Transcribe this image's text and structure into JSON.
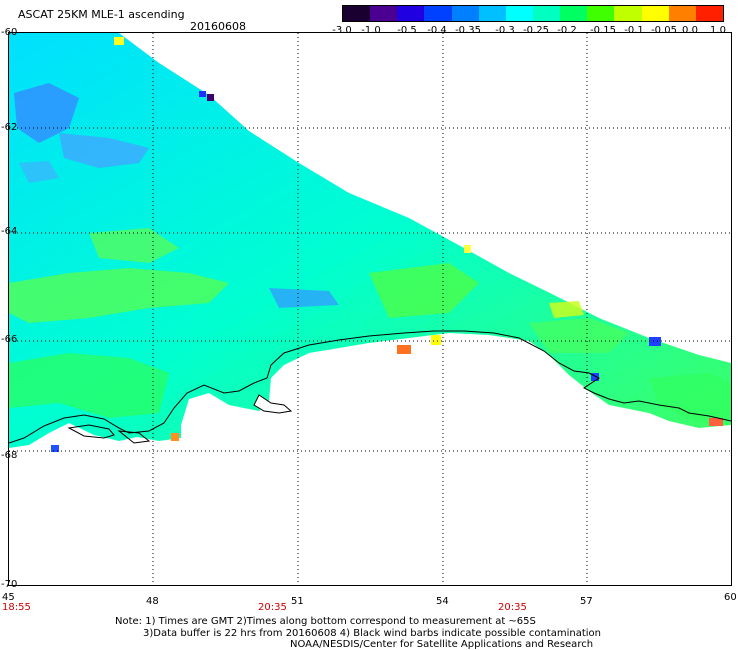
{
  "header": {
    "title": "ASCAT 25KM MLE-1 ascending",
    "date": "20160608"
  },
  "colorbar": {
    "labels": [
      "-3.0",
      "-1.0",
      "-0.5",
      "-0.4",
      "-0.35",
      "-0.3",
      "-0.25",
      "-0.2",
      "-0.15",
      "-0.1",
      "-0.05",
      "0.0",
      "1.0"
    ],
    "colors": [
      "#1a0030",
      "#4a0090",
      "#2000e0",
      "#0040ff",
      "#0080ff",
      "#00c0ff",
      "#00ffff",
      "#00ffc0",
      "#00ff60",
      "#40ff00",
      "#c0ff00",
      "#ffff00",
      "#ff8000",
      "#ff2000"
    ]
  },
  "map": {
    "lat_labels": [
      "-60",
      "-62",
      "-64",
      "-66",
      "-68",
      "-70"
    ],
    "lon_labels": [
      "45",
      "48",
      "51",
      "54",
      "57",
      "60"
    ],
    "time_labels": [
      "18:55",
      "20:35",
      "20:35"
    ]
  },
  "notes": {
    "line1": "Note: 1) Times are GMT 2)Times along bottom correspond to measurement at ~65S",
    "line2": "3)Data buffer is 22 hrs from 20160608 4) Black wind barbs indicate possible contamination",
    "line3": "NOAA/NESDIS/Center for Satellite Applications and Research"
  }
}
